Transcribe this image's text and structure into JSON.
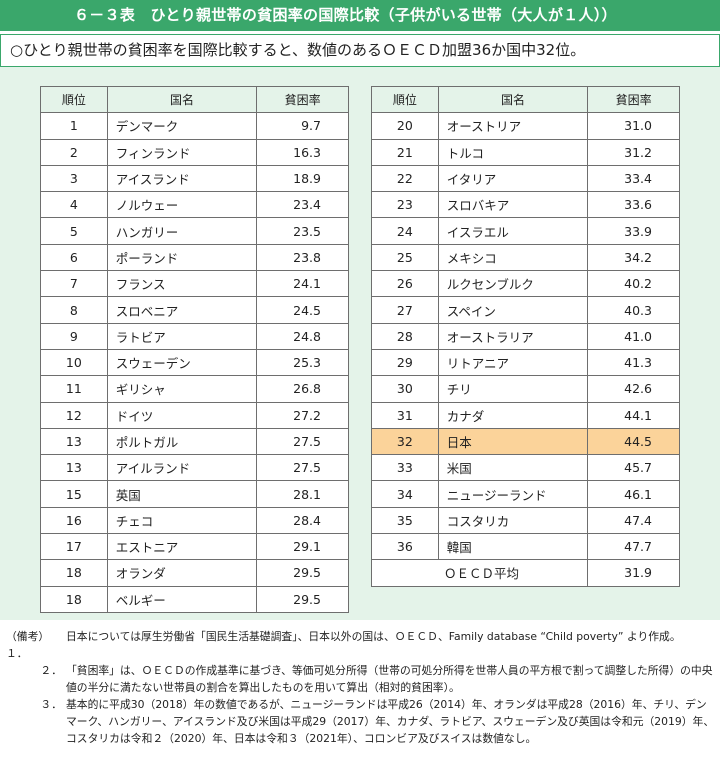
{
  "title": "６－３表　ひとり親世帯の貧困率の国際比較（子供がいる世帯（大人が１人））",
  "summary": "○ひとり親世帯の貧困率を国際比較すると、数値のあるＯＥＣＤ加盟36か国中32位。",
  "headers": {
    "rank": "順位",
    "country": "国名",
    "rate": "貧困率"
  },
  "left_rows": [
    {
      "rank": "1",
      "country": "デンマーク",
      "rate": "9.7"
    },
    {
      "rank": "2",
      "country": "フィンランド",
      "rate": "16.3"
    },
    {
      "rank": "3",
      "country": "アイスランド",
      "rate": "18.9"
    },
    {
      "rank": "4",
      "country": "ノルウェー",
      "rate": "23.4"
    },
    {
      "rank": "5",
      "country": "ハンガリー",
      "rate": "23.5"
    },
    {
      "rank": "6",
      "country": "ポーランド",
      "rate": "23.8"
    },
    {
      "rank": "7",
      "country": "フランス",
      "rate": "24.1"
    },
    {
      "rank": "8",
      "country": "スロベニア",
      "rate": "24.5"
    },
    {
      "rank": "9",
      "country": "ラトビア",
      "rate": "24.8"
    },
    {
      "rank": "10",
      "country": "スウェーデン",
      "rate": "25.3"
    },
    {
      "rank": "11",
      "country": "ギリシャ",
      "rate": "26.8"
    },
    {
      "rank": "12",
      "country": "ドイツ",
      "rate": "27.2"
    },
    {
      "rank": "13",
      "country": "ポルトガル",
      "rate": "27.5"
    },
    {
      "rank": "13",
      "country": "アイルランド",
      "rate": "27.5"
    },
    {
      "rank": "15",
      "country": "英国",
      "rate": "28.1"
    },
    {
      "rank": "16",
      "country": "チェコ",
      "rate": "28.4"
    },
    {
      "rank": "17",
      "country": "エストニア",
      "rate": "29.1"
    },
    {
      "rank": "18",
      "country": "オランダ",
      "rate": "29.5"
    },
    {
      "rank": "18",
      "country": "ベルギー",
      "rate": "29.5"
    }
  ],
  "right_rows": [
    {
      "rank": "20",
      "country": "オーストリア",
      "rate": "31.0"
    },
    {
      "rank": "21",
      "country": "トルコ",
      "rate": "31.2"
    },
    {
      "rank": "22",
      "country": "イタリア",
      "rate": "33.4"
    },
    {
      "rank": "23",
      "country": "スロバキア",
      "rate": "33.6"
    },
    {
      "rank": "24",
      "country": "イスラエル",
      "rate": "33.9"
    },
    {
      "rank": "25",
      "country": "メキシコ",
      "rate": "34.2"
    },
    {
      "rank": "26",
      "country": "ルクセンブルク",
      "rate": "40.2"
    },
    {
      "rank": "27",
      "country": "スペイン",
      "rate": "40.3"
    },
    {
      "rank": "28",
      "country": "オーストラリア",
      "rate": "41.0"
    },
    {
      "rank": "29",
      "country": "リトアニア",
      "rate": "41.3"
    },
    {
      "rank": "30",
      "country": "チリ",
      "rate": "42.6"
    },
    {
      "rank": "31",
      "country": "カナダ",
      "rate": "44.1"
    },
    {
      "rank": "32",
      "country": "日本",
      "rate": "44.5",
      "highlight": true
    },
    {
      "rank": "33",
      "country": "米国",
      "rate": "45.7"
    },
    {
      "rank": "34",
      "country": "ニュージーランド",
      "rate": "46.1"
    },
    {
      "rank": "35",
      "country": "コスタリカ",
      "rate": "47.4"
    },
    {
      "rank": "36",
      "country": "韓国",
      "rate": "47.7"
    }
  ],
  "average": {
    "label": "ＯＥＣＤ平均",
    "rate": "31.9"
  },
  "highlight_color": "#fbd39a",
  "accent_color": "#3aa76b",
  "notes": {
    "prefix": "（備考）",
    "items": [
      {
        "num": "１．",
        "text": "日本については厚生労働省「国民生活基礎調査」、日本以外の国は、ＯＥＣＤ、Family database “Child poverty” より作成。"
      },
      {
        "num": "２．",
        "text": "「貧困率」は、ＯＥＣＤの作成基準に基づき、等価可処分所得（世帯の可処分所得を世帯人員の平方根で割って調整した所得）の中央値の半分に満たない世帯員の割合を算出したものを用いて算出（相対的貧困率）。"
      },
      {
        "num": "３．",
        "text": "基本的に平成30（2018）年の数値であるが、ニュージーランドは平成26（2014）年、オランダは平成28（2016）年、チリ、デンマーク、ハンガリー、アイスランド及び米国は平成29（2017）年、カナダ、ラトビア、スウェーデン及び英国は令和元（2019）年、コスタリカは令和２（2020）年、日本は令和３（2021年）、コロンビア及びスイスは数値なし。"
      }
    ]
  }
}
